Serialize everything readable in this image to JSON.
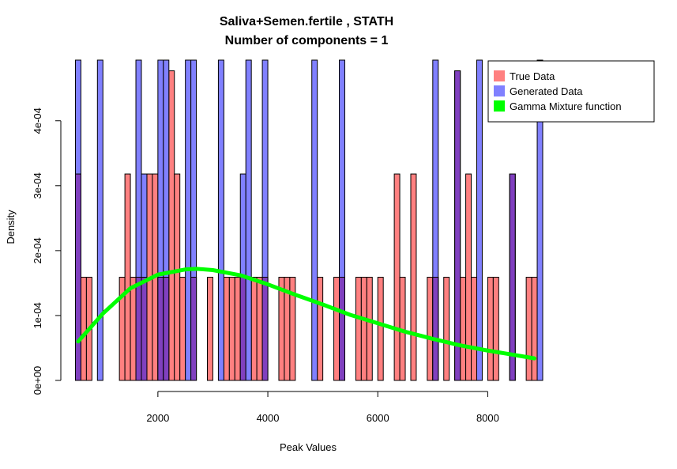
{
  "chart_data": {
    "type": "bar",
    "title": "Saliva+Semen.fertile , STATH",
    "subtitle": "Number of components =  1",
    "xlabel": "Peak Values",
    "ylabel": "Density",
    "xlim": [
      450,
      9000
    ],
    "ylim": [
      0,
      0.0004935
    ],
    "x_ticks": [
      2000,
      4000,
      6000,
      8000
    ],
    "x_tick_labels": [
      "2000",
      "4000",
      "6000",
      "8000"
    ],
    "y_ticks": [
      0,
      0.0001,
      0.0002,
      0.0003,
      0.0004
    ],
    "y_tick_labels": [
      "0e+00",
      "1e-04",
      "2e-04",
      "3e-04",
      "4e-04"
    ],
    "bin_width": 100,
    "legend": {
      "position": "top-right",
      "entries": [
        {
          "label": "True Data",
          "color": "#ff8080"
        },
        {
          "label": "Generated Data",
          "color": "#8080ff"
        },
        {
          "label": "Gamma Mixture function",
          "color": "#00ff00"
        }
      ]
    },
    "colors": {
      "true_data": "#ff8080",
      "generated_data": "#8080ff",
      "overlap": "#8040bf",
      "curve": "#00ff00"
    },
    "series": [
      {
        "name": "True Data",
        "bins": [
          [
            500,
            0.000318
          ],
          [
            600,
            0.000159
          ],
          [
            700,
            0.000159
          ],
          [
            1300,
            0.000159
          ],
          [
            1400,
            0.000318
          ],
          [
            1500,
            0.000159
          ],
          [
            1600,
            0.000159
          ],
          [
            1700,
            0.000159
          ],
          [
            1800,
            0.000318
          ],
          [
            1900,
            0.000318
          ],
          [
            2000,
            0.000159
          ],
          [
            2100,
            0.000159
          ],
          [
            2200,
            0.000477
          ],
          [
            2300,
            0.000318
          ],
          [
            2400,
            0.000159
          ],
          [
            2600,
            0.000159
          ],
          [
            2900,
            0.000159
          ],
          [
            3200,
            0.000159
          ],
          [
            3300,
            0.000159
          ],
          [
            3400,
            0.000159
          ],
          [
            3500,
            0.000159
          ],
          [
            3700,
            0.000159
          ],
          [
            3800,
            0.000159
          ],
          [
            3900,
            0.000159
          ],
          [
            4200,
            0.000159
          ],
          [
            4300,
            0.000159
          ],
          [
            4400,
            0.000159
          ],
          [
            4900,
            0.000159
          ],
          [
            5200,
            0.000159
          ],
          [
            5300,
            0.000159
          ],
          [
            5600,
            0.000159
          ],
          [
            5700,
            0.000159
          ],
          [
            5800,
            0.000159
          ],
          [
            6000,
            0.000159
          ],
          [
            6300,
            0.000318
          ],
          [
            6400,
            0.000159
          ],
          [
            6600,
            0.000318
          ],
          [
            6900,
            0.000159
          ],
          [
            7000,
            0.000159
          ],
          [
            7200,
            0.000159
          ],
          [
            7400,
            0.000477
          ],
          [
            7500,
            0.000159
          ],
          [
            7600,
            0.000318
          ],
          [
            7700,
            0.000159
          ],
          [
            8000,
            0.000159
          ],
          [
            8100,
            0.000159
          ],
          [
            8400,
            0.000318
          ],
          [
            8700,
            0.000159
          ],
          [
            8800,
            0.000159
          ]
        ]
      },
      {
        "name": "Generated Data",
        "bins": [
          [
            500,
            0.0005
          ],
          [
            900,
            0.0005
          ],
          [
            1600,
            0.0005
          ],
          [
            1700,
            0.000318
          ],
          [
            2000,
            0.0005
          ],
          [
            2100,
            0.0005
          ],
          [
            2500,
            0.0005
          ],
          [
            2600,
            0.0005
          ],
          [
            3100,
            0.0005
          ],
          [
            3500,
            0.000318
          ],
          [
            3600,
            0.0005
          ],
          [
            3900,
            0.0005
          ],
          [
            4800,
            0.0005
          ],
          [
            5300,
            0.0005
          ],
          [
            7000,
            0.0005
          ],
          [
            7400,
            0.000477
          ],
          [
            7800,
            0.0005
          ],
          [
            8400,
            0.000318
          ],
          [
            8900,
            0.0005
          ]
        ]
      },
      {
        "name": "Gamma Mixture function",
        "x": [
          550,
          1000,
          1500,
          2000,
          2500,
          2700,
          3000,
          3500,
          4000,
          4500,
          5000,
          5500,
          6000,
          6500,
          7000,
          7500,
          8000,
          8500,
          8850
        ],
        "y": [
          6e-05,
          0.000103,
          0.000142,
          0.000163,
          0.000171,
          0.000172,
          0.00017,
          0.000162,
          0.000148,
          0.000132,
          0.000117,
          0.000101,
          8.8e-05,
          7.5e-05,
          6.4e-05,
          5.4e-05,
          4.6e-05,
          3.9e-05,
          3.4e-05
        ]
      }
    ]
  }
}
